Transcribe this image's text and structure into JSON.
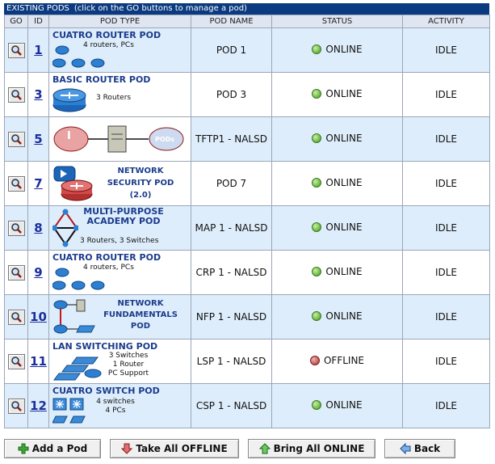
{
  "header": {
    "title": "EXISTING PODS",
    "hint": "(click on the GO buttons to manage a pod)"
  },
  "columns": {
    "go": "GO",
    "id": "ID",
    "pod_type": "POD TYPE",
    "pod_name": "POD NAME",
    "status": "STATUS",
    "activity": "ACTIVITY"
  },
  "rows": [
    {
      "id": "1",
      "type_title": "CUATRO ROUTER POD",
      "type_desc": "4 routers, PCs",
      "icon": "router-cluster-icon",
      "name": "POD 1",
      "status": "ONLINE",
      "activity": "IDLE"
    },
    {
      "id": "3",
      "type_title": "BASIC ROUTER POD",
      "type_desc": "3 Routers",
      "icon": "router-icon",
      "name": "POD 3",
      "status": "ONLINE",
      "activity": "IDLE"
    },
    {
      "id": "5",
      "type_title": "",
      "type_desc": "",
      "icon": "cloud-server-diagram-icon",
      "cloud_left": "I",
      "cloud_right": "PODs",
      "name": "TFTP1 - NALSD",
      "status": "ONLINE",
      "activity": "IDLE"
    },
    {
      "id": "7",
      "type_title": "NETWORK SECURITY POD (2.0)",
      "type_desc": "",
      "icon": "security-router-icon",
      "name": "POD 7",
      "status": "ONLINE",
      "activity": "IDLE"
    },
    {
      "id": "8",
      "type_title": "MULTI-PURPOSE ACADEMY POD",
      "type_desc": "3 Routers, 3 Switches",
      "icon": "triangle-topology-icon",
      "name": "MAP 1 - NALSD",
      "status": "ONLINE",
      "activity": "IDLE"
    },
    {
      "id": "9",
      "type_title": "CUATRO ROUTER POD",
      "type_desc": "4 routers, PCs",
      "icon": "router-cluster-icon",
      "name": "CRP 1 - NALSD",
      "status": "ONLINE",
      "activity": "IDLE"
    },
    {
      "id": "10",
      "type_title": "NETWORK FUNDAMENTALS POD",
      "type_desc": "",
      "icon": "fundamentals-topology-icon",
      "name": "NFP 1 - NALSD",
      "status": "ONLINE",
      "activity": "IDLE"
    },
    {
      "id": "11",
      "type_title": "LAN SWITCHING POD",
      "type_desc": "3 Switches / 1 Router / PC Support",
      "icon": "switch-stack-icon",
      "name": "LSP 1 - NALSD",
      "status": "OFFLINE",
      "activity": "IDLE"
    },
    {
      "id": "12",
      "type_title": "CUATRO SWITCH POD",
      "type_desc": "4 switches / 4 PCs",
      "icon": "switch-cluster-icon",
      "name": "CSP 1 - NALSD",
      "status": "ONLINE",
      "activity": "IDLE"
    }
  ],
  "actions": {
    "add": "Add a Pod",
    "take_offline": "Take All OFFLINE",
    "bring_online": "Bring All ONLINE",
    "back": "Back"
  },
  "colors": {
    "header_bg": "#0b3a80",
    "row_alt": "#deedfb",
    "title_blue": "#1b3c8c",
    "online": "#3d9a1a",
    "offline": "#b02a2a"
  }
}
